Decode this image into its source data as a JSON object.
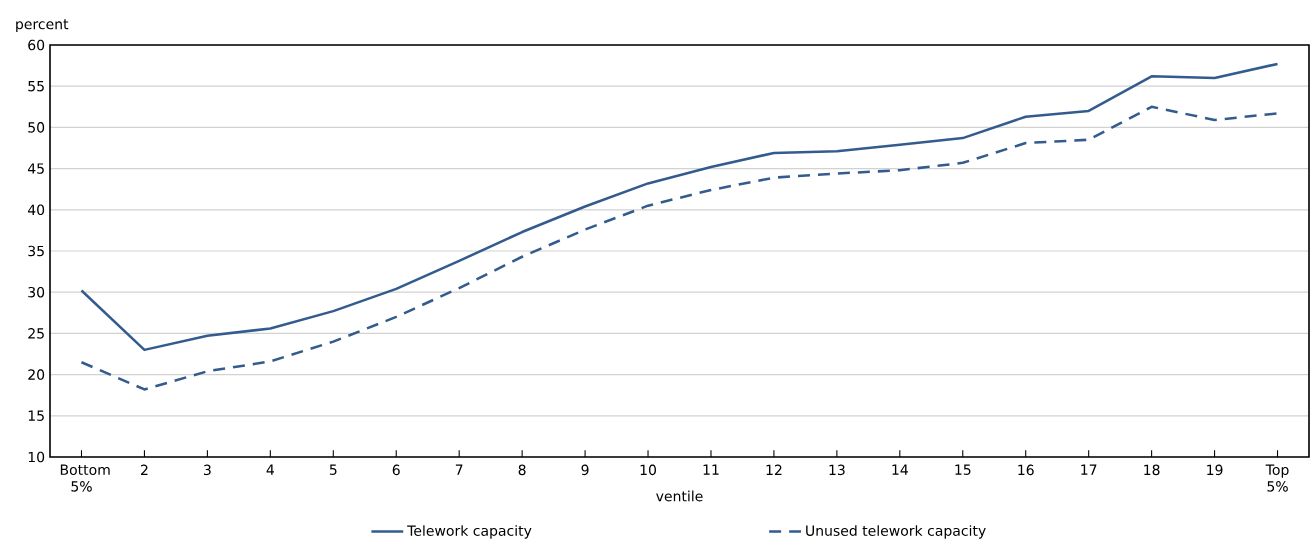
{
  "chart_data": {
    "type": "line",
    "ylabel": "percent",
    "xlabel": "ventile",
    "categories": [
      "Bottom 5%",
      "2",
      "3",
      "4",
      "5",
      "6",
      "7",
      "8",
      "9",
      "10",
      "11",
      "12",
      "13",
      "14",
      "15",
      "16",
      "17",
      "18",
      "19",
      "Top 5%"
    ],
    "series": [
      {
        "name": "Telework capacity",
        "color": "#335b8e",
        "line_style": "solid",
        "values": [
          30.2,
          23.0,
          24.7,
          25.6,
          27.7,
          30.4,
          33.8,
          37.3,
          40.4,
          43.2,
          45.2,
          46.9,
          47.1,
          47.9,
          48.7,
          51.3,
          52.0,
          56.2,
          56.0,
          57.7
        ]
      },
      {
        "name": "Unused telework capacity",
        "color": "#335b8e",
        "line_style": "dashed",
        "values": [
          21.5,
          18.2,
          20.4,
          21.6,
          24.0,
          27.0,
          30.5,
          34.3,
          37.6,
          40.5,
          42.4,
          43.9,
          44.4,
          44.8,
          45.7,
          48.1,
          48.5,
          52.5,
          50.9,
          51.7
        ]
      }
    ],
    "ylim": [
      10,
      60
    ],
    "yticks": [
      10,
      15,
      20,
      25,
      30,
      35,
      40,
      45,
      50,
      55,
      60
    ],
    "grid": "y",
    "legend": "bottom",
    "marker": "none"
  }
}
